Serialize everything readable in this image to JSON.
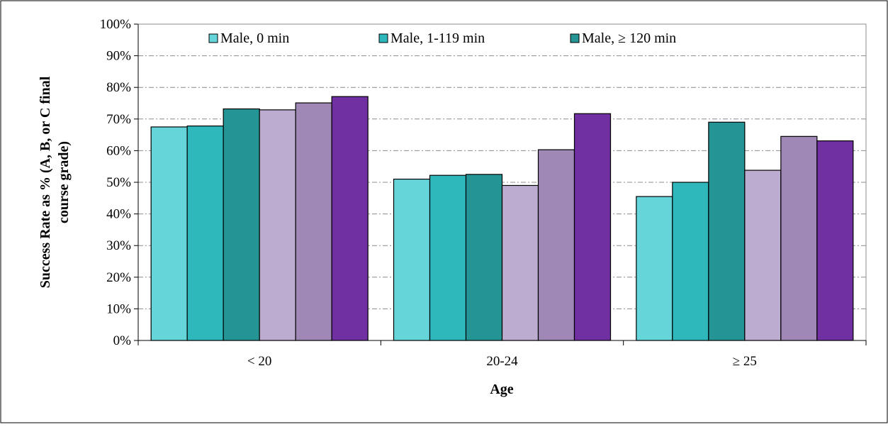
{
  "chart_data": {
    "type": "bar",
    "categories": [
      "< 20",
      "20-24",
      "≥ 25"
    ],
    "xlabel": "Age",
    "ylabel": "Success Rate as % (A, B, or C final course grade)",
    "ylim": [
      0,
      100
    ],
    "yticks": [
      "0%",
      "10%",
      "20%",
      "30%",
      "40%",
      "50%",
      "60%",
      "70%",
      "80%",
      "90%",
      "100%"
    ],
    "grid": true,
    "legend_position": "top",
    "series": [
      {
        "name": "Male, 0 min",
        "color": "#66d5d9",
        "values": [
          67.5,
          51,
          45.5
        ]
      },
      {
        "name": "Male, 1-119 min",
        "color": "#2eb8bc",
        "values": [
          67.8,
          52.2,
          50
        ]
      },
      {
        "name": "Male, ≥ 120 min",
        "color": "#259494",
        "values": [
          73.2,
          52.5,
          69
        ]
      },
      {
        "name": "",
        "color": "#bcacd0",
        "values": [
          72.9,
          49,
          53.8
        ]
      },
      {
        "name": "",
        "color": "#9f87b6",
        "values": [
          75.1,
          60.3,
          64.5
        ]
      },
      {
        "name": "",
        "color": "#7130a2",
        "values": [
          77.1,
          71.7,
          63.1
        ]
      }
    ]
  }
}
